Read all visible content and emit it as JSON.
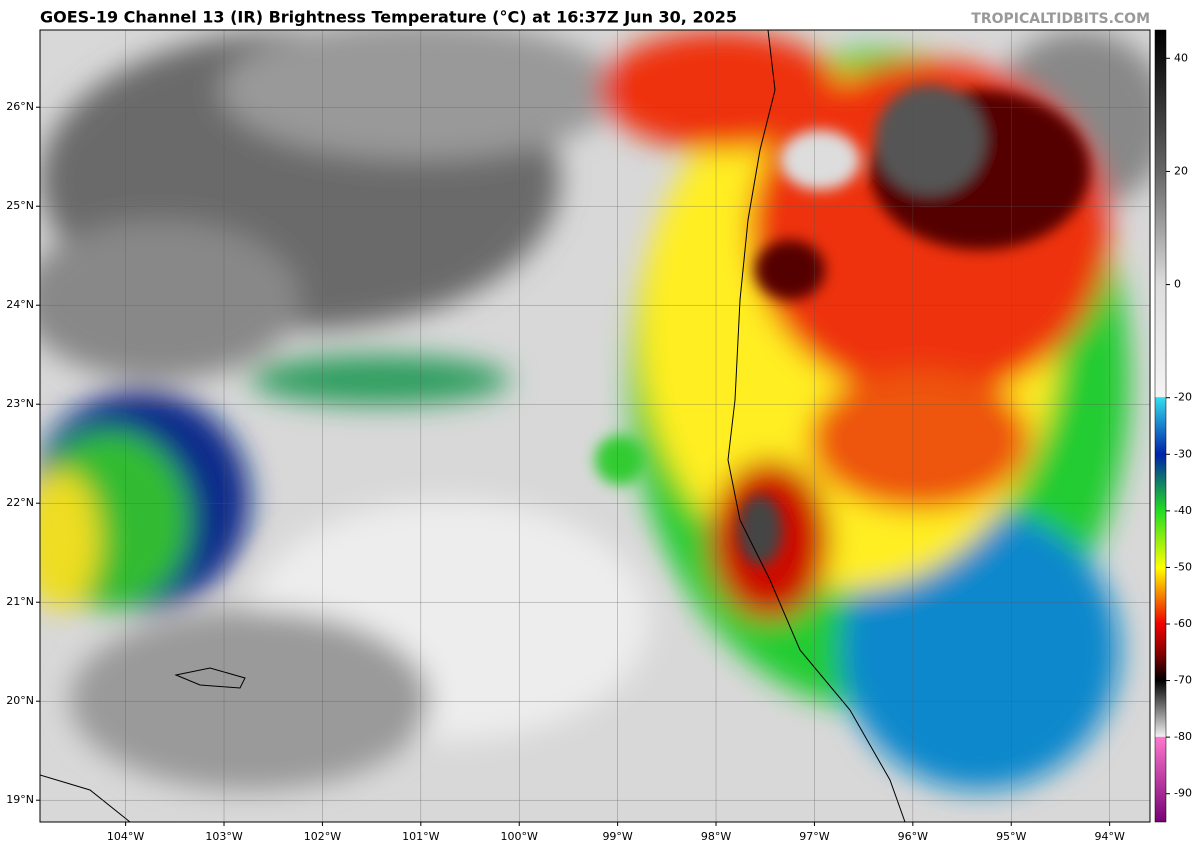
{
  "header": {
    "title": "GOES-19 Channel 13 (IR) Brightness Temperature (°C) at 16:37Z Jun 30, 2025",
    "watermark": "TROPICALTIDBITS.COM"
  },
  "map": {
    "lon_range": [
      -104.87,
      -93.59
    ],
    "lat_range": [
      18.78,
      26.78
    ],
    "lon_ticks": [
      {
        "value": -104,
        "label": "104°W"
      },
      {
        "value": -103,
        "label": "103°W"
      },
      {
        "value": -102,
        "label": "102°W"
      },
      {
        "value": -101,
        "label": "101°W"
      },
      {
        "value": -100,
        "label": "100°W"
      },
      {
        "value": -99,
        "label": "99°W"
      },
      {
        "value": -98,
        "label": "98°W"
      },
      {
        "value": -97,
        "label": "97°W"
      },
      {
        "value": -96,
        "label": "96°W"
      },
      {
        "value": -95,
        "label": "95°W"
      },
      {
        "value": -94,
        "label": "94°W"
      }
    ],
    "lat_ticks": [
      {
        "value": 26,
        "label": "26°N"
      },
      {
        "value": 25,
        "label": "25°N"
      },
      {
        "value": 24,
        "label": "24°N"
      },
      {
        "value": 23,
        "label": "23°N"
      },
      {
        "value": 22,
        "label": "22°N"
      },
      {
        "value": 21,
        "label": "21°N"
      },
      {
        "value": 20,
        "label": "20°N"
      },
      {
        "value": 19,
        "label": "19°N"
      }
    ]
  },
  "colorbar": {
    "range": [
      -95,
      45
    ],
    "ticks": [
      40,
      20,
      0,
      -20,
      -30,
      -40,
      -50,
      -60,
      -70,
      -80,
      -90
    ]
  }
}
